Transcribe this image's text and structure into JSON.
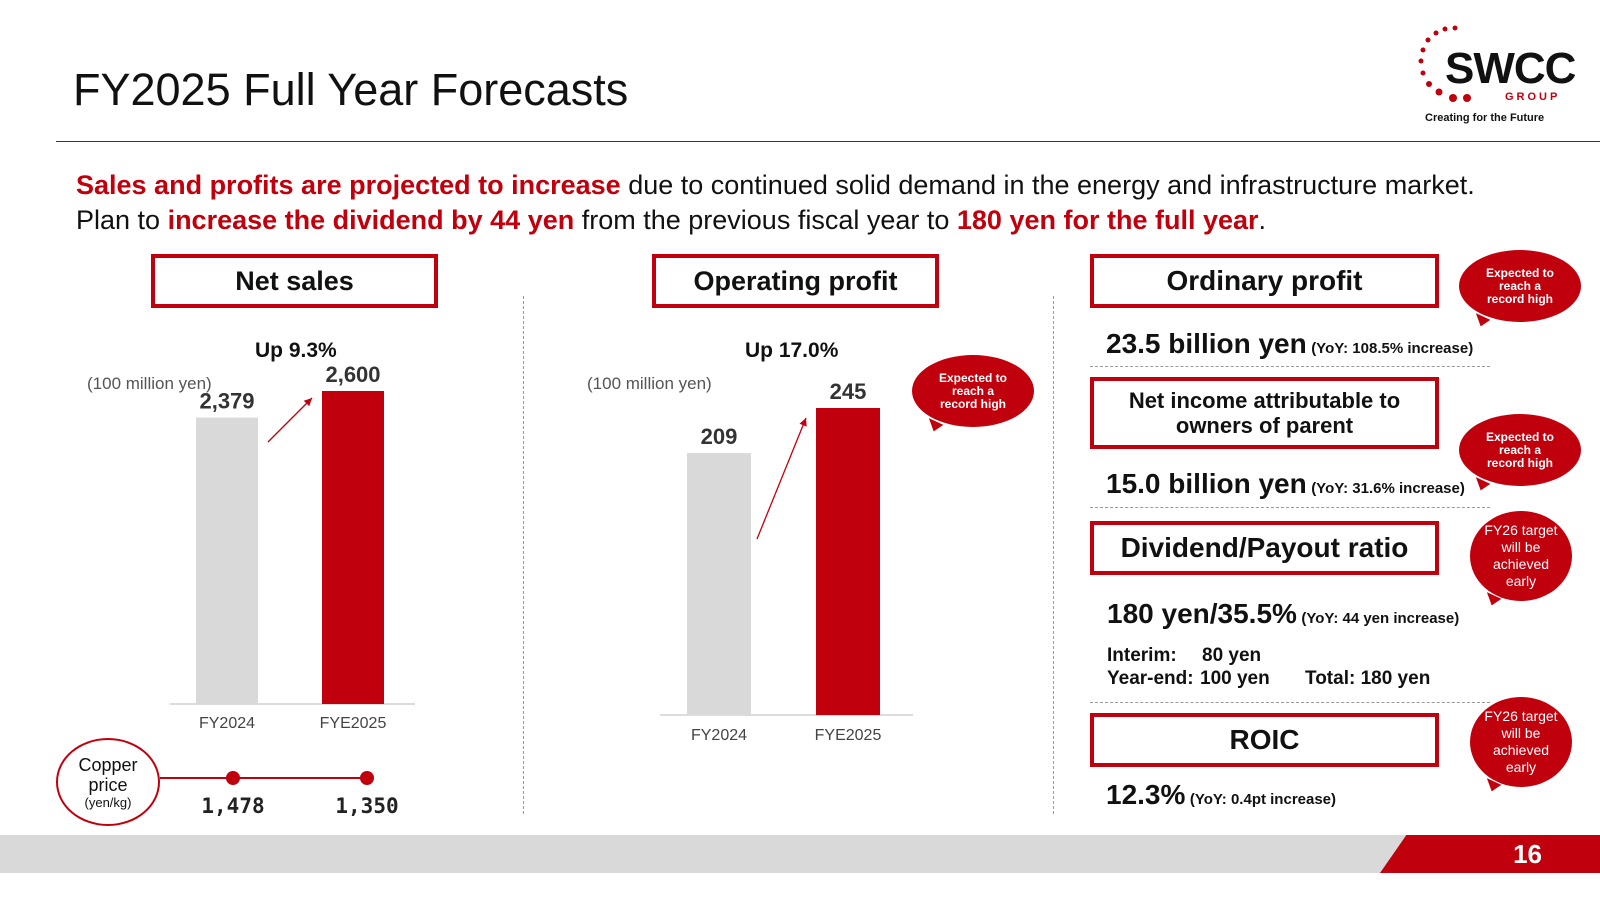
{
  "slide": {
    "title": "FY2025 Full Year Forecasts",
    "page_number": "16"
  },
  "logo": {
    "name": "SWCC",
    "group": "GROUP",
    "tagline": "Creating  for the Future"
  },
  "headline": {
    "line1_red": "Sales and profits are projected to increase",
    "line1_rest": " due to continued solid demand in the energy and infrastructure market.",
    "line2_pre": "Plan to ",
    "line2_red1": "increase the dividend by 44 yen",
    "line2_mid": " from the previous fiscal year to ",
    "line2_red2": "180 yen for the full year",
    "line2_end": "."
  },
  "net_sales": {
    "header": "Net sales",
    "growth": "Up 9.3%",
    "unit": "(100 million yen)",
    "copper": {
      "label": "Copper price",
      "unit": "(yen/kg)",
      "values": [
        "1,478",
        "1,350"
      ]
    }
  },
  "operating_profit": {
    "header": "Operating profit",
    "growth": "Up 17.0%",
    "unit": "(100 million yen)",
    "bubble": "Expected to reach a record high"
  },
  "right_panel": {
    "ordinary_profit": {
      "header": "Ordinary profit",
      "value": "23.5 billion yen",
      "yoy": "(YoY: 108.5% increase)",
      "bubble": "Expected to reach a record high"
    },
    "net_income": {
      "header_line1": "Net income attributable to",
      "header_line2": "owners of parent",
      "value": "15.0 billion yen",
      "yoy": "(YoY: 31.6% increase)",
      "bubble": "Expected to reach a record high"
    },
    "dividend": {
      "header": "Dividend/Payout ratio",
      "value": "180 yen/35.5%",
      "yoy": "(YoY: 44 yen increase)",
      "interim_label": "Interim:",
      "interim_value": "80 yen",
      "yearend_label": "Year-end:",
      "yearend_value": "100 yen",
      "total": "Total: 180 yen",
      "bubble": "FY26 target will be achieved early"
    },
    "roic": {
      "header": "ROIC",
      "value": "12.3%",
      "yoy": "(YoY: 0.4pt increase)",
      "bubble": "FY26 target will be achieved early"
    }
  },
  "colors": {
    "accent": "#c0000c",
    "prior_bar": "#d9d9d9",
    "footer": "#d9d9d9"
  },
  "chart_data": [
    {
      "type": "bar",
      "title": "Net sales",
      "categories": [
        "FY2024",
        "FYE2025"
      ],
      "values": [
        2379,
        2600
      ],
      "value_labels": [
        "2,379",
        "2,600"
      ],
      "ylabel": "(100 million yen)",
      "ylim": [
        0,
        2600
      ],
      "annotation": "Up 9.3%"
    },
    {
      "type": "bar",
      "title": "Operating profit",
      "categories": [
        "FY2024",
        "FYE2025"
      ],
      "values": [
        209,
        245
      ],
      "value_labels": [
        "209",
        "245"
      ],
      "ylabel": "(100 million yen)",
      "ylim": [
        0,
        245
      ],
      "annotation": "Up 17.0%"
    }
  ]
}
